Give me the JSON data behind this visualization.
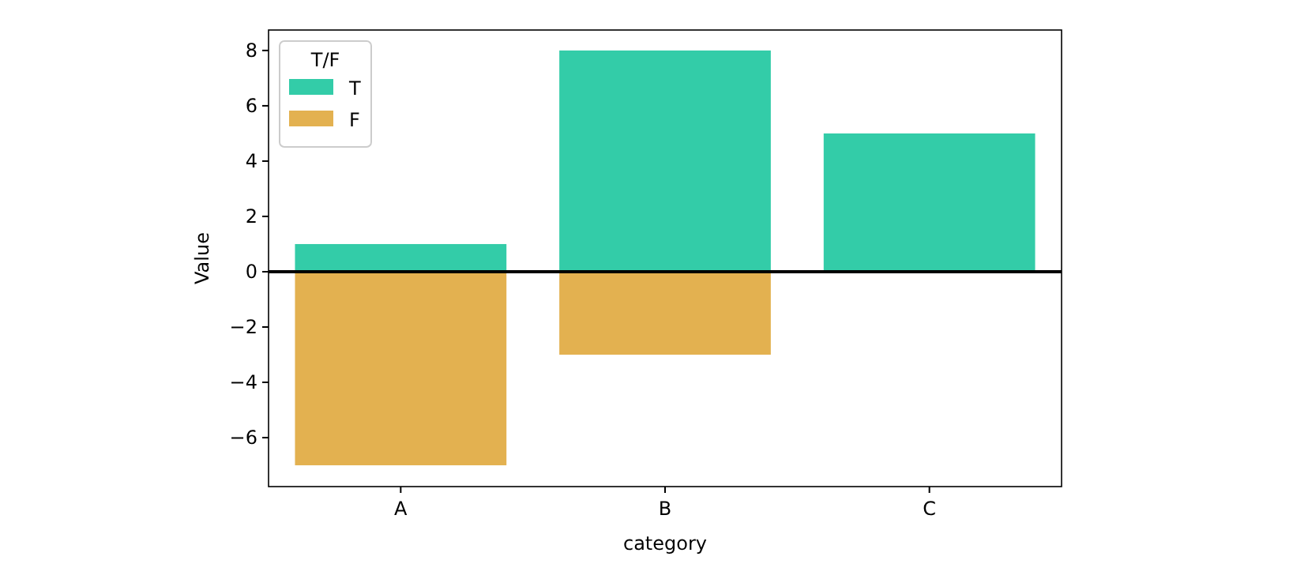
{
  "chart_data": {
    "type": "bar",
    "xlabel": "category",
    "ylabel": "Value",
    "legend_title": "T/F",
    "categories": [
      "A",
      "B",
      "C"
    ],
    "series": [
      {
        "name": "T",
        "color": "#33cca8",
        "values": [
          1,
          8,
          5
        ]
      },
      {
        "name": "F",
        "color": "#e3b150",
        "values": [
          -7,
          -3,
          null
        ]
      }
    ],
    "stacked": true,
    "ylim": [
      -7.77,
      8.74
    ],
    "yticks": [
      -6,
      -4,
      -2,
      0,
      2,
      4,
      6,
      8
    ],
    "ref_lines": [
      {
        "axis": "y",
        "value": 0,
        "color": "#000000"
      }
    ],
    "legend": "top left",
    "grid": false
  }
}
